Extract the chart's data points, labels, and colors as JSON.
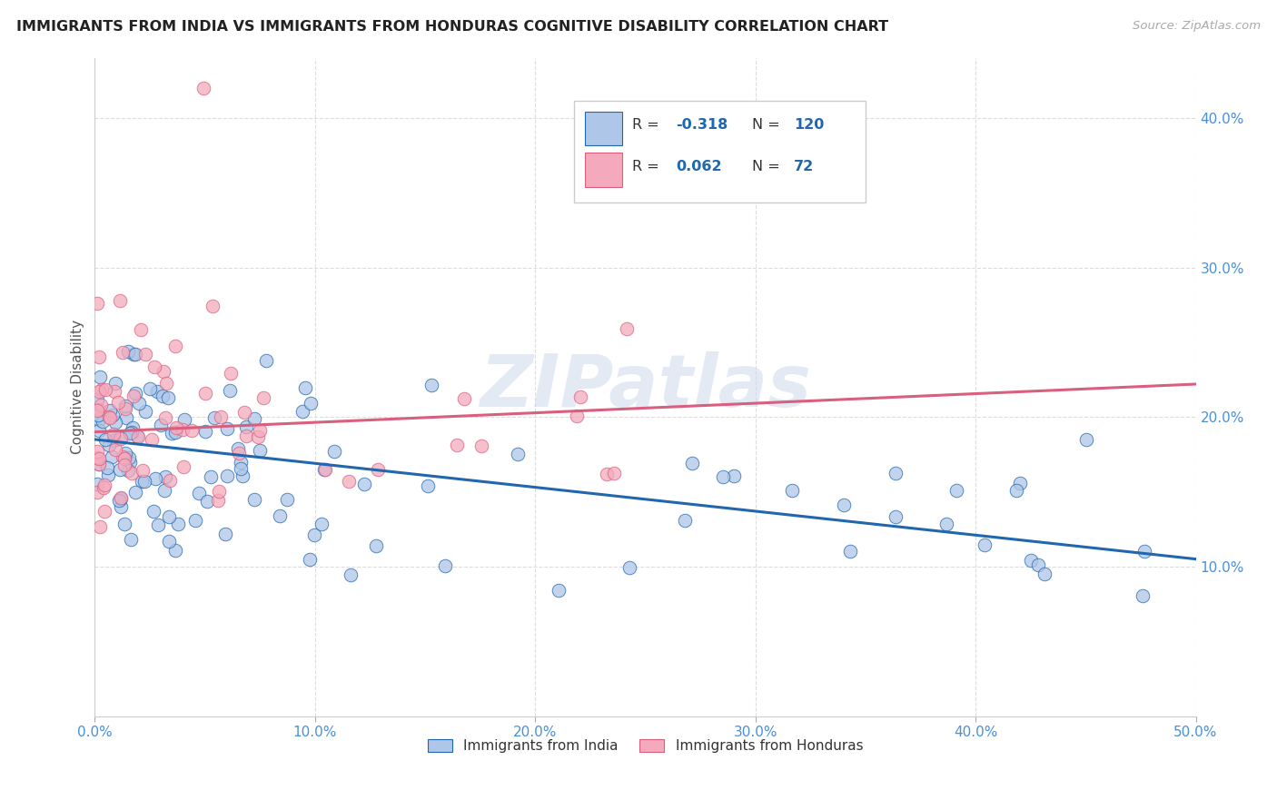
{
  "title": "IMMIGRANTS FROM INDIA VS IMMIGRANTS FROM HONDURAS COGNITIVE DISABILITY CORRELATION CHART",
  "source": "Source: ZipAtlas.com",
  "ylabel": "Cognitive Disability",
  "xlim": [
    0.0,
    0.5
  ],
  "ylim": [
    0.0,
    0.44
  ],
  "xticks": [
    0.0,
    0.1,
    0.2,
    0.3,
    0.4,
    0.5
  ],
  "yticks": [
    0.1,
    0.2,
    0.3,
    0.4
  ],
  "xtick_labels": [
    "0.0%",
    "10.0%",
    "20.0%",
    "30.0%",
    "40.0%",
    "50.0%"
  ],
  "ytick_labels": [
    "10.0%",
    "20.0%",
    "30.0%",
    "40.0%"
  ],
  "india_R": -0.318,
  "india_N": 120,
  "honduras_R": 0.062,
  "honduras_N": 72,
  "india_color": "#aec6e8",
  "honduras_color": "#f4aabc",
  "india_line_color": "#2167ae",
  "honduras_line_color": "#d95f7f",
  "india_trend_x0": 0.0,
  "india_trend_y0": 0.185,
  "india_trend_x1": 0.5,
  "india_trend_y1": 0.105,
  "honduras_trend_x0": 0.0,
  "honduras_trend_y0": 0.19,
  "honduras_trend_x1": 0.5,
  "honduras_trend_y1": 0.222,
  "watermark": "ZIPatlas",
  "background_color": "#ffffff",
  "grid_color": "#dddddd",
  "legend_label_india": "Immigrants from India",
  "legend_label_honduras": "Immigrants from Honduras"
}
